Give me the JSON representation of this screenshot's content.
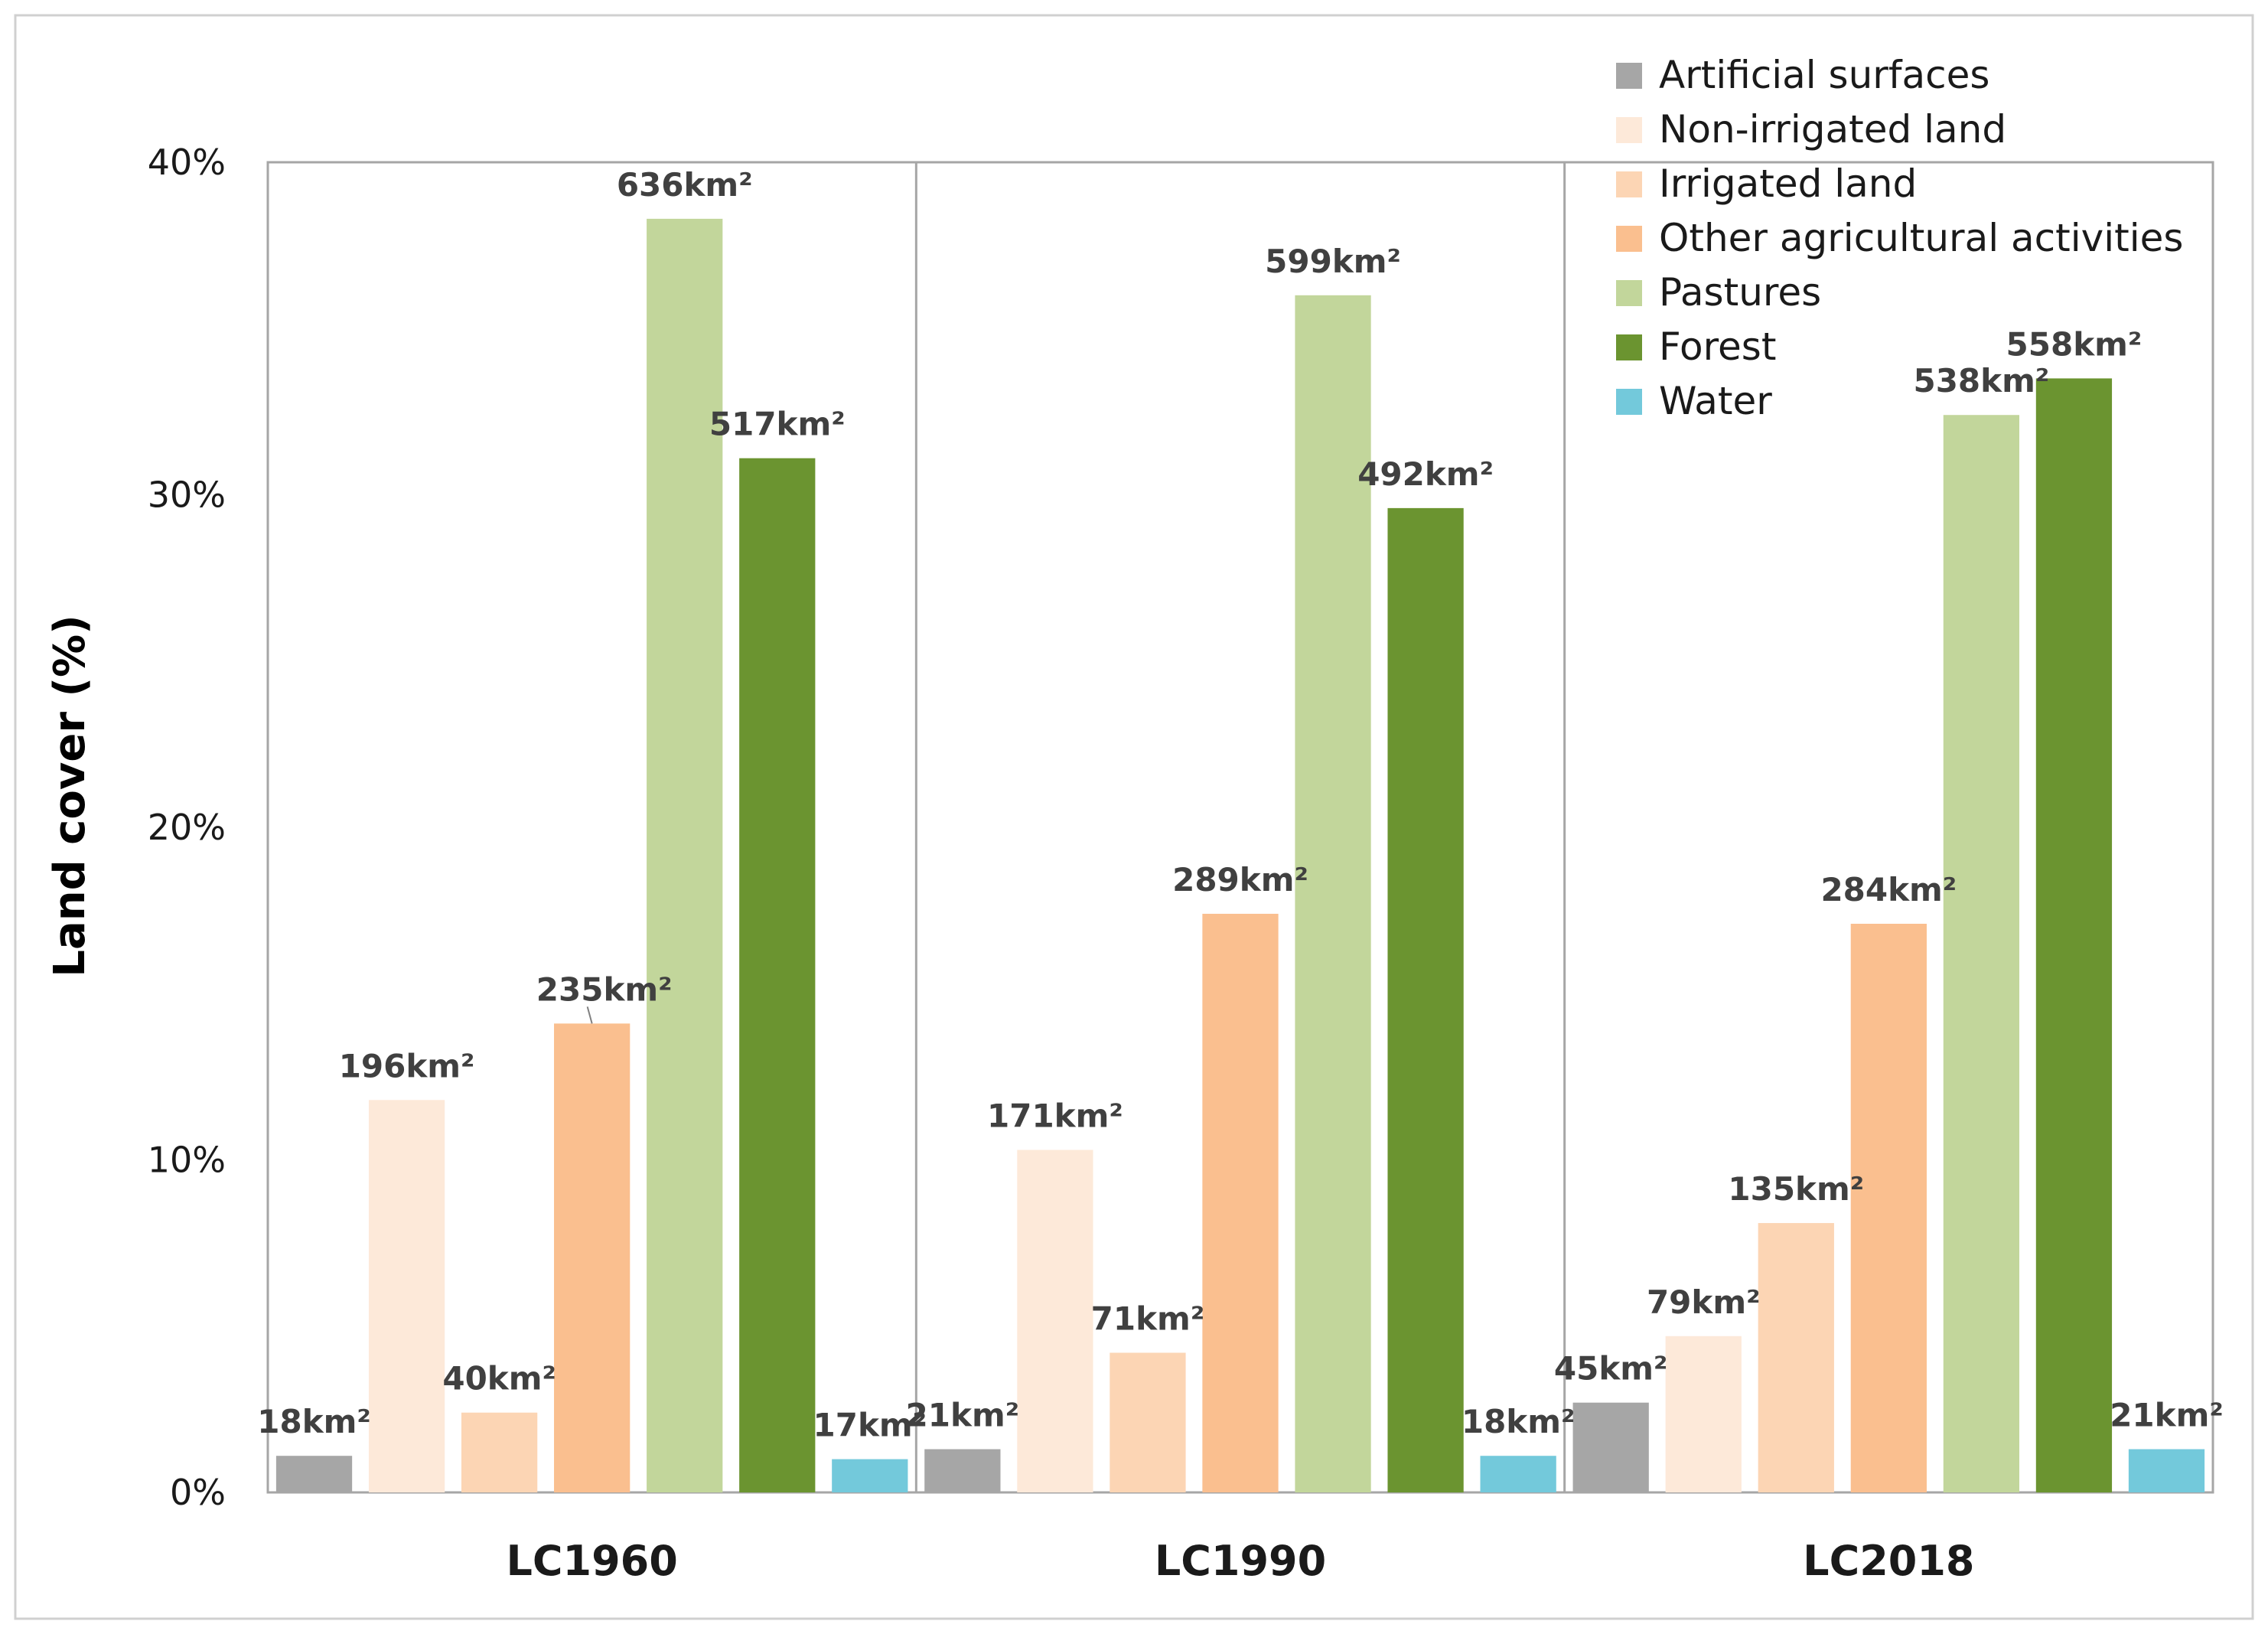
{
  "chart_data": {
    "type": "bar",
    "ylabel": "Land cover (%)",
    "ylim": [
      0,
      40
    ],
    "yticks": [
      "0%",
      "10%",
      "20%",
      "30%",
      "40%"
    ],
    "ytick_values": [
      0,
      10,
      20,
      30,
      40
    ],
    "categories": [
      "LC1960",
      "LC1990",
      "LC2018"
    ],
    "legend_position": "top-right",
    "series": [
      {
        "name": "Artificial surfaces",
        "color": "#a6a6a6",
        "values": [
          1.1,
          1.3,
          2.7
        ],
        "labels": [
          "18km²",
          "21km²",
          "45km²"
        ]
      },
      {
        "name": "Non-irrigated land",
        "color": "#fde9d9",
        "values": [
          11.8,
          10.3,
          4.7
        ],
        "labels": [
          "196km²",
          "171km²",
          "79km²"
        ]
      },
      {
        "name": "Irrigated land",
        "color": "#fcd5b4",
        "values": [
          2.4,
          4.2,
          8.1
        ],
        "labels": [
          "40km²",
          "71km²",
          "135km²"
        ]
      },
      {
        "name": "Other agricultural activities",
        "color": "#fabf8f",
        "values": [
          14.1,
          17.4,
          17.1
        ],
        "labels": [
          "235km²",
          "289km²",
          "284km²"
        ]
      },
      {
        "name": "Pastures",
        "color": "#c2d69b",
        "values": [
          38.3,
          36.0,
          32.4
        ],
        "labels": [
          "636km²",
          "599km²",
          "538km²"
        ]
      },
      {
        "name": "Forest",
        "color": "#6b9430",
        "values": [
          31.1,
          29.6,
          33.5
        ],
        "labels": [
          "517km²",
          "492km²",
          "558km²"
        ]
      },
      {
        "name": "Water",
        "color": "#73c9db",
        "values": [
          1.0,
          1.1,
          1.3
        ],
        "labels": [
          "17km²",
          "18km²",
          "21km²"
        ]
      }
    ]
  }
}
